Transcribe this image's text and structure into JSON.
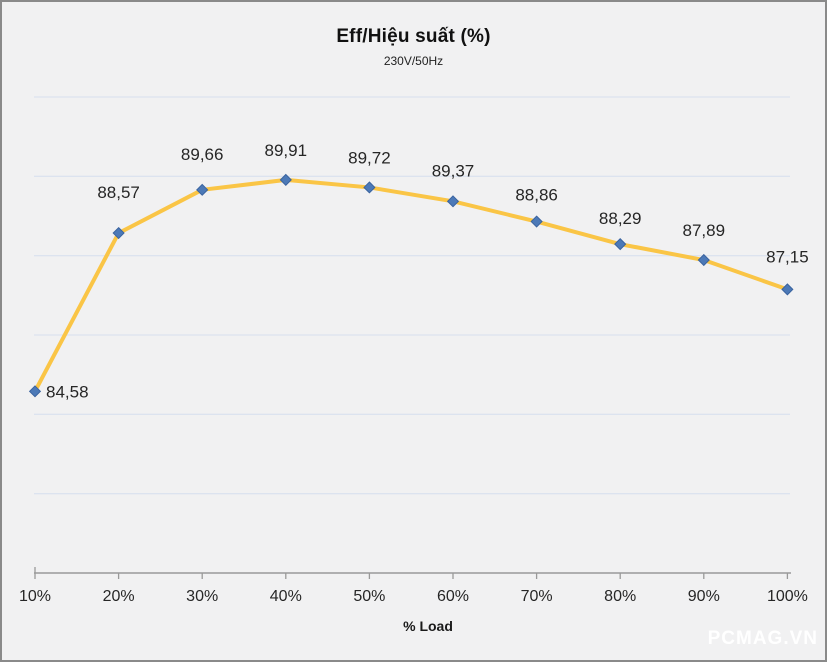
{
  "watermark": "PCMAG.VN",
  "chart_data": {
    "type": "line",
    "title": "Eff/Hiệu suất (%)",
    "subtitle": "230V/50Hz",
    "xlabel": "% Load",
    "categories": [
      "10%",
      "20%",
      "30%",
      "40%",
      "50%",
      "60%",
      "70%",
      "80%",
      "90%",
      "100%"
    ],
    "values": [
      84.58,
      88.57,
      89.66,
      89.91,
      89.72,
      89.37,
      88.86,
      88.29,
      87.89,
      87.15
    ],
    "value_labels": [
      "84,58",
      "88,57",
      "89,66",
      "89,91",
      "89,72",
      "89,37",
      "88,86",
      "88,29",
      "87,89",
      "87,15"
    ],
    "series_name": "Eff/Hiệu suất",
    "ylim": [
      80,
      92
    ],
    "grid_step": 2,
    "grid": true,
    "legend": "none",
    "colors": {
      "line": "#FAC546",
      "marker": "#4C79B7",
      "marker_border": "#3A639F",
      "gridline": "#DCE3EF",
      "axis": "#999999",
      "text": "#262626",
      "axis_title": "#1A1A1A",
      "background": "#F1F1F2",
      "frame_border": "#8A8A8A",
      "watermark": "#FFFFFF"
    }
  }
}
